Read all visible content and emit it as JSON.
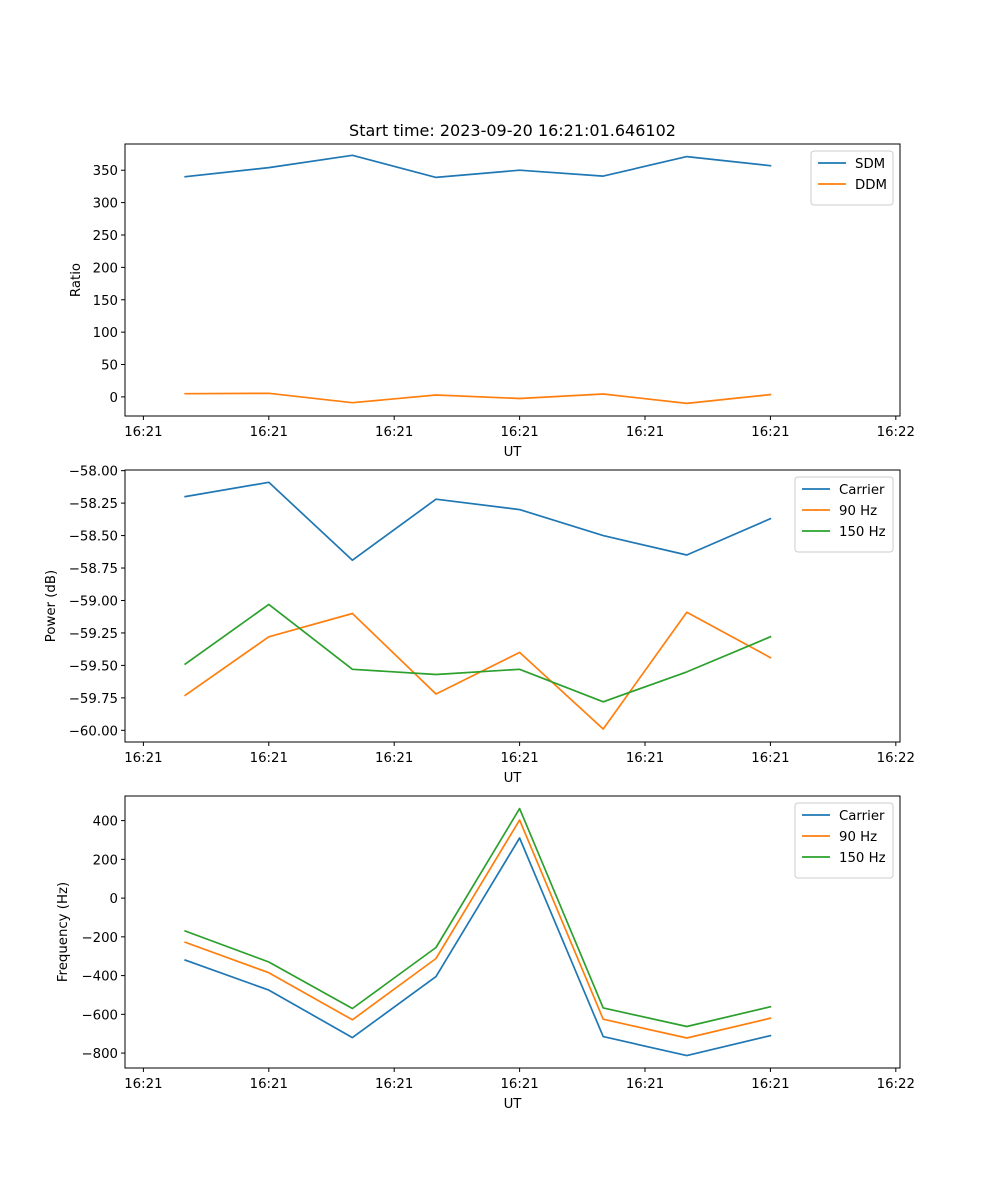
{
  "figure_title": "Start time: 2023-09-20 16:21:01.646102",
  "chart_data": [
    {
      "type": "line",
      "title": "Start time: 2023-09-20 16:21:01.646102",
      "xlabel": "UT",
      "ylabel": "Ratio",
      "x": [
        1,
        2,
        3,
        4,
        5,
        6,
        7,
        8
      ],
      "xlim": [
        0.28,
        9.55
      ],
      "x_ticks": [
        0.5,
        2,
        3.5,
        5,
        6.5,
        8,
        9.5
      ],
      "x_tick_labels": [
        "16:21",
        "16:21",
        "16:21",
        "16:21",
        "16:21",
        "16:21",
        "16:22"
      ],
      "ylim": [
        -29.5,
        390.5
      ],
      "y_ticks": [
        0,
        50,
        100,
        150,
        200,
        250,
        300,
        350
      ],
      "y_tick_labels": [
        "0",
        "50",
        "100",
        "150",
        "200",
        "250",
        "300",
        "350"
      ],
      "legend_position": "top-right",
      "grid": false,
      "series": [
        {
          "name": "SDM",
          "color": "#1f77b4",
          "values": [
            340,
            354,
            373,
            339,
            350,
            341,
            371,
            357
          ]
        },
        {
          "name": "DDM",
          "color": "#ff7f0e",
          "values": [
            5,
            5.5,
            -9,
            3,
            -2.5,
            4.5,
            -10,
            3.5
          ]
        }
      ]
    },
    {
      "type": "line",
      "title": "",
      "xlabel": "UT",
      "ylabel": "Power (dB)",
      "x": [
        1,
        2,
        3,
        4,
        5,
        6,
        7,
        8
      ],
      "xlim": [
        0.28,
        9.55
      ],
      "x_ticks": [
        0.5,
        2,
        3.5,
        5,
        6.5,
        8,
        9.5
      ],
      "x_tick_labels": [
        "16:21",
        "16:21",
        "16:21",
        "16:21",
        "16:21",
        "16:21",
        "16:22"
      ],
      "ylim": [
        -60.09,
        -57.995
      ],
      "y_ticks": [
        -58.0,
        -58.25,
        -58.5,
        -58.75,
        -59.0,
        -59.25,
        -59.5,
        -59.75,
        -60.0
      ],
      "y_tick_labels": [
        "−58.00",
        "−58.25",
        "−58.50",
        "−58.75",
        "−59.00",
        "−59.25",
        "−59.50",
        "−59.75",
        "−60.00"
      ],
      "legend_position": "top-right",
      "grid": false,
      "series": [
        {
          "name": "Carrier",
          "color": "#1f77b4",
          "values": [
            -58.2,
            -58.09,
            -58.69,
            -58.22,
            -58.3,
            -58.5,
            -58.65,
            -58.37
          ]
        },
        {
          "name": "90 Hz",
          "color": "#ff7f0e",
          "values": [
            -59.73,
            -59.28,
            -59.1,
            -59.72,
            -59.4,
            -59.99,
            -59.09,
            -59.44
          ]
        },
        {
          "name": "150 Hz",
          "color": "#2ca02c",
          "values": [
            -59.49,
            -59.03,
            -59.53,
            -59.57,
            -59.53,
            -59.78,
            -59.55,
            -59.28
          ]
        }
      ]
    },
    {
      "type": "line",
      "title": "",
      "xlabel": "UT",
      "ylabel": "Frequency (Hz)",
      "x": [
        1,
        2,
        3,
        4,
        5,
        6,
        7,
        8
      ],
      "xlim": [
        0.28,
        9.55
      ],
      "x_ticks": [
        0.5,
        2,
        3.5,
        5,
        6.5,
        8,
        9.5
      ],
      "x_tick_labels": [
        "16:21",
        "16:21",
        "16:21",
        "16:21",
        "16:21",
        "16:21",
        "16:22"
      ],
      "ylim": [
        -877,
        527
      ],
      "y_ticks": [
        400,
        200,
        0,
        -200,
        -400,
        -600,
        -800
      ],
      "y_tick_labels": [
        "400",
        "200",
        "0",
        "−200",
        "−400",
        "−600",
        "−800"
      ],
      "legend_position": "top-right",
      "grid": false,
      "series": [
        {
          "name": "Carrier",
          "color": "#1f77b4",
          "values": [
            -320,
            -475,
            -720,
            -405,
            310,
            -715,
            -813,
            -710
          ]
        },
        {
          "name": "90 Hz",
          "color": "#ff7f0e",
          "values": [
            -228,
            -385,
            -628,
            -312,
            403,
            -625,
            -722,
            -620
          ]
        },
        {
          "name": "150 Hz",
          "color": "#2ca02c",
          "values": [
            -170,
            -330,
            -570,
            -255,
            462,
            -567,
            -663,
            -561
          ]
        }
      ]
    }
  ]
}
